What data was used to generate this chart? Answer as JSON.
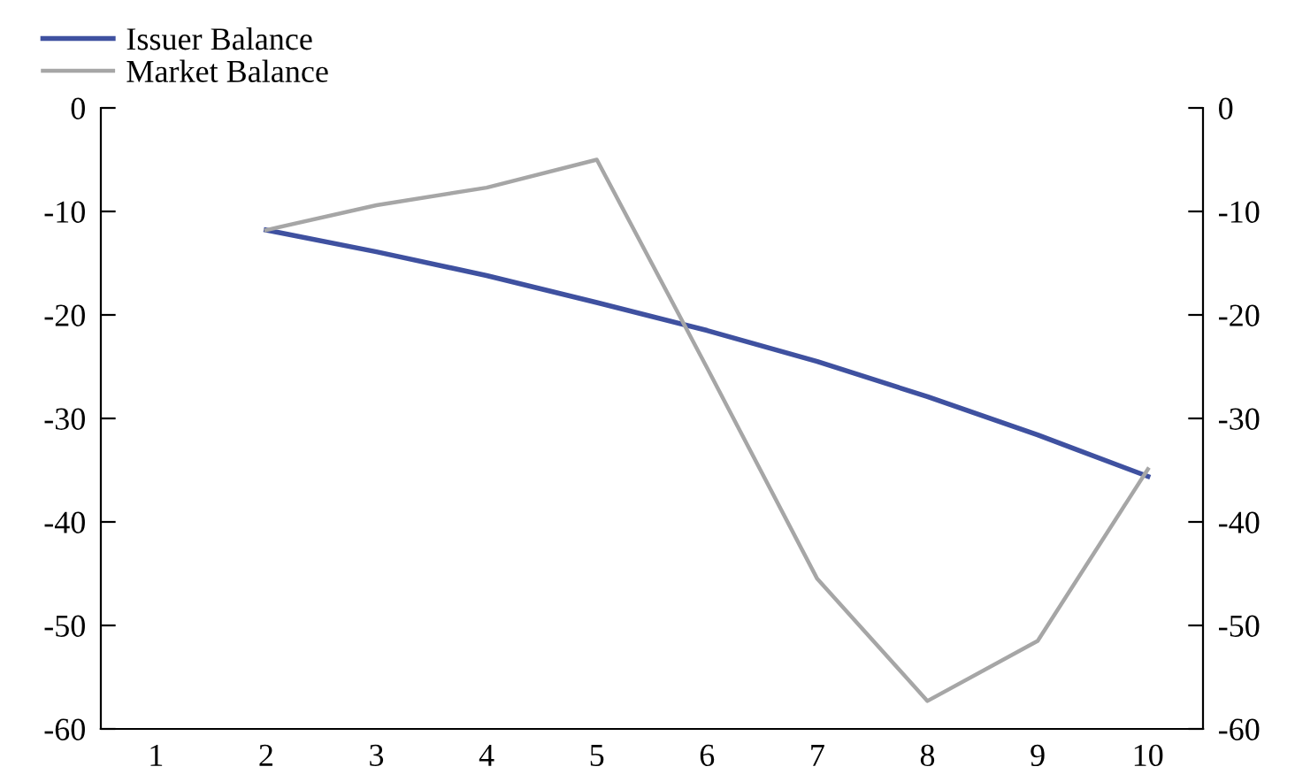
{
  "chart_data": {
    "type": "line",
    "categories": [
      "1",
      "2",
      "3",
      "4",
      "5",
      "6",
      "7",
      "8",
      "9",
      "10"
    ],
    "series": [
      {
        "name": "Issuer Balance",
        "color": "#3f51a0",
        "values": [
          null,
          -11.8,
          -13.9,
          -16.2,
          -18.8,
          -21.5,
          -24.5,
          -27.9,
          -31.6,
          -35.6
        ]
      },
      {
        "name": "Market Balance",
        "color": "#a6a6a6",
        "values": [
          null,
          -11.8,
          -9.4,
          -7.7,
          -5.0,
          -25.1,
          -45.5,
          -57.3,
          -51.5,
          -34.9
        ]
      }
    ],
    "ylim": [
      -60,
      0
    ],
    "yticks": [
      -60,
      -50,
      -40,
      -30,
      -20,
      -10,
      0
    ],
    "y2lim": [
      -60,
      0
    ],
    "y2ticks": [
      -60,
      -50,
      -40,
      -30,
      -20,
      -10,
      0
    ],
    "grid": false,
    "legend": "top left",
    "marker": "none",
    "line_style": "solid"
  }
}
